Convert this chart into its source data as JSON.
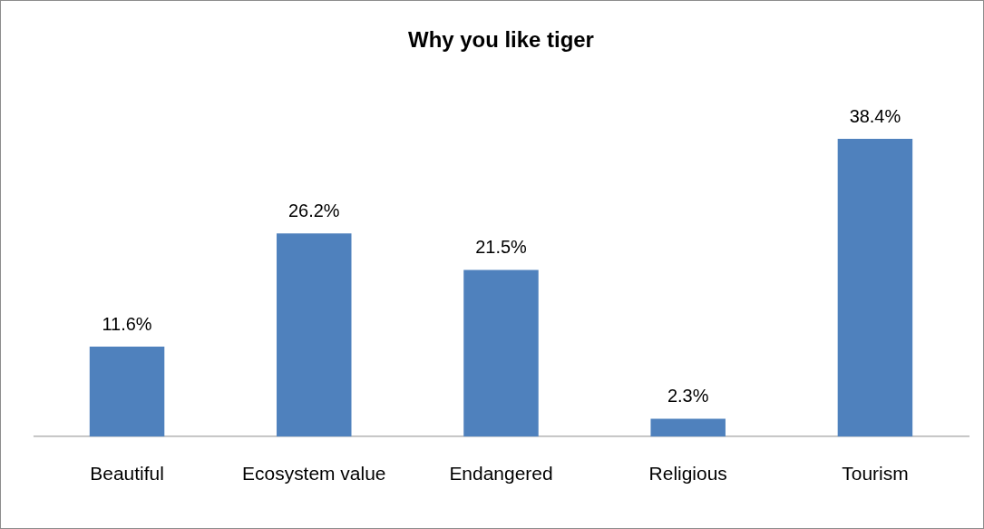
{
  "chart_data": {
    "type": "bar",
    "title": "Why you like tiger",
    "categories": [
      "Beautiful",
      "Ecosystem value",
      "Endangered",
      "Religious",
      "Tourism"
    ],
    "values": [
      11.6,
      26.2,
      21.5,
      2.3,
      38.4
    ],
    "value_labels": [
      "11.6%",
      "26.2%",
      "21.5%",
      "2.3%",
      "38.4%"
    ],
    "color": "#4f81bd",
    "grid": false,
    "legend": false,
    "tick_labels": "x"
  }
}
